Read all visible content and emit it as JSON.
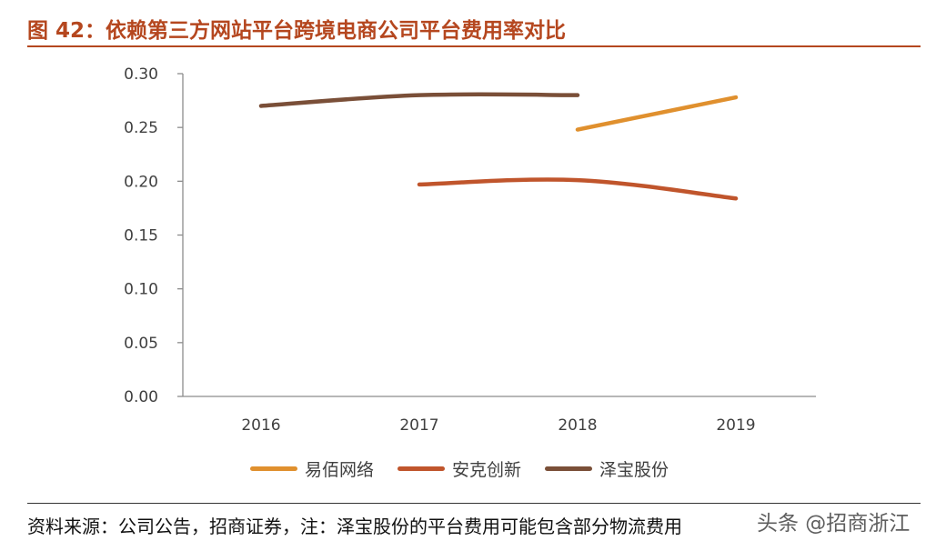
{
  "header": {
    "title": "图 42：依赖第三方网站平台跨境电商公司平台费用率对比"
  },
  "footer": {
    "source": "资料来源：公司公告，招商证券，注：泽宝股份的平台费用可能包含部分物流费用",
    "watermark": "头条 @招商浙江"
  },
  "colors": {
    "accent": "#b5471f",
    "series_1": "#e0902e",
    "series_2": "#c0552c",
    "series_3": "#7a4f38"
  },
  "chart_data": {
    "type": "line",
    "title": "图 42：依赖第三方网站平台跨境电商公司平台费用率对比",
    "xlabel": "",
    "ylabel": "",
    "categories": [
      "2016",
      "2017",
      "2018",
      "2019"
    ],
    "ylim": [
      0,
      0.3
    ],
    "yticks": [
      "0.00",
      "0.05",
      "0.10",
      "0.15",
      "0.20",
      "0.25",
      "0.30"
    ],
    "grid": false,
    "legend_position": "bottom",
    "series": [
      {
        "name": "易佰网络",
        "values": [
          null,
          null,
          0.248,
          0.278
        ],
        "color": "#e0902e"
      },
      {
        "name": "安克创新",
        "values": [
          null,
          0.197,
          0.201,
          0.184
        ],
        "color": "#c0552c"
      },
      {
        "name": "泽宝股份",
        "values": [
          0.27,
          0.28,
          0.28,
          null
        ],
        "color": "#7a4f38"
      }
    ]
  }
}
